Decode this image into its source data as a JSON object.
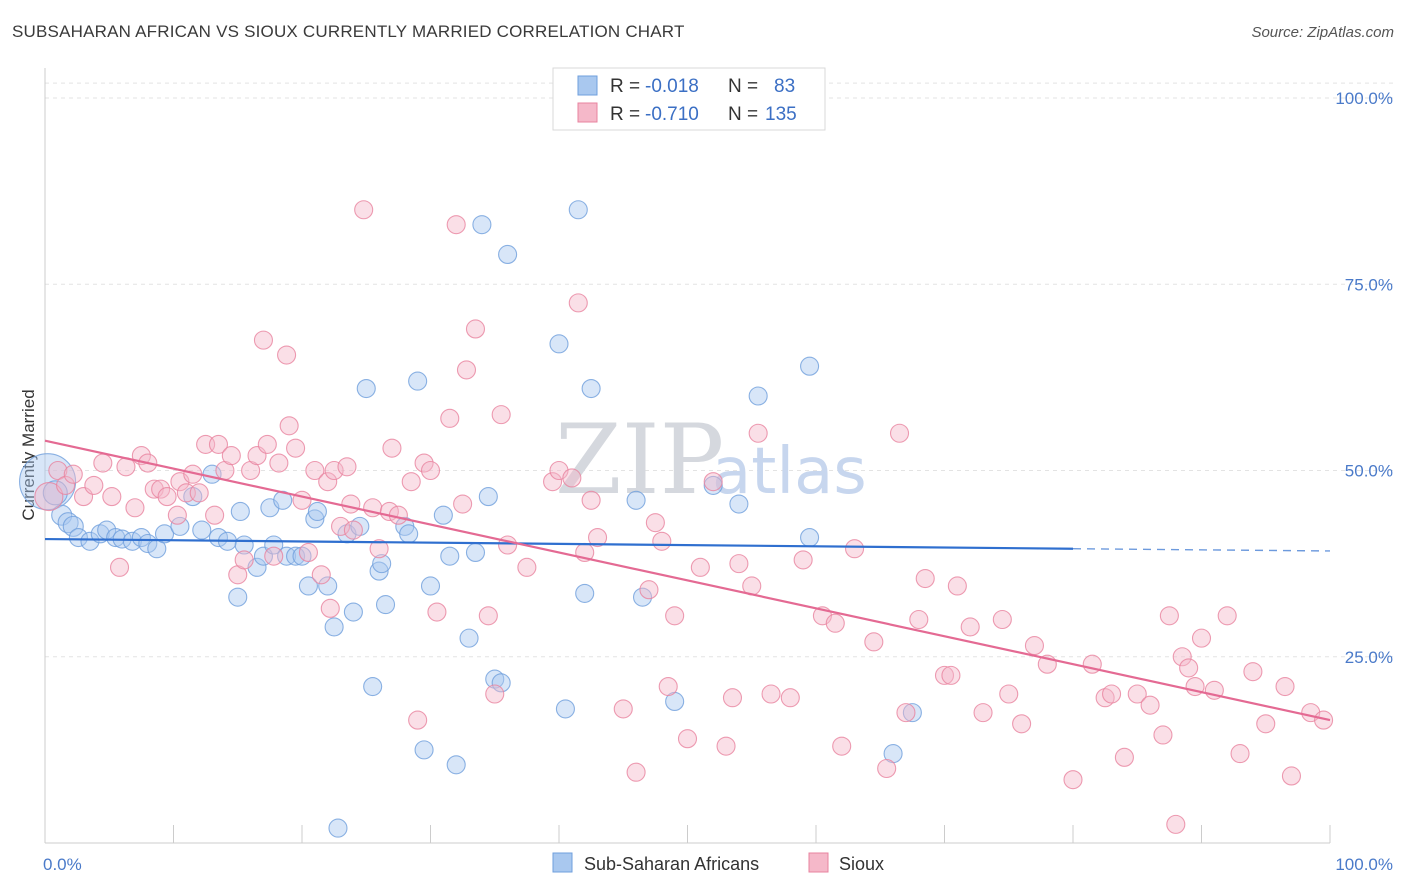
{
  "chart_data": {
    "type": "scatter",
    "title": "SUBSAHARAN AFRICAN VS SIOUX CURRENTLY MARRIED CORRELATION CHART",
    "source": "Source: ZipAtlas.com",
    "ylabel": "Currently Married",
    "xlim": [
      0,
      100
    ],
    "ylim": [
      0,
      102
    ],
    "x_tick_labels": [
      "0.0%",
      "100.0%"
    ],
    "y_ticks": [
      25,
      50,
      75,
      100
    ],
    "y_tick_labels": [
      "25.0%",
      "50.0%",
      "75.0%",
      "100.0%"
    ],
    "grid": true,
    "watermark": "ZIPatlas",
    "legend": [
      {
        "series": "Sub-Saharan Africans",
        "r_label": "R =",
        "r": "-0.018",
        "n_label": "N =",
        "n": "83"
      },
      {
        "series": "Sioux",
        "r_label": "R =",
        "r": "-0.710",
        "n_label": "N =",
        "n": "135"
      }
    ],
    "series": [
      {
        "name": "Sub-Saharan Africans",
        "color": "#6f9fdc",
        "fill": "#a9c8ef",
        "trend": {
          "x": [
            0,
            80
          ],
          "y": [
            40.8,
            39.5
          ],
          "dashed_to": [
            100,
            39.2
          ]
        },
        "points": [
          [
            0.2,
            48.5,
            28
          ],
          [
            0.8,
            47,
            12
          ],
          [
            1.3,
            44,
            10
          ],
          [
            1.8,
            43,
            10
          ],
          [
            2.2,
            42.5,
            10
          ],
          [
            2.6,
            41,
            9
          ],
          [
            3.5,
            40.5,
            9
          ],
          [
            4.3,
            41.5,
            9
          ],
          [
            4.8,
            42,
            9
          ],
          [
            5.5,
            41,
            9
          ],
          [
            6.0,
            40.8,
            9
          ],
          [
            6.8,
            40.5,
            9
          ],
          [
            7.5,
            41,
            9
          ],
          [
            8.0,
            40.2,
            9
          ],
          [
            8.7,
            39.5,
            9
          ],
          [
            9.3,
            41.5,
            9
          ],
          [
            10.5,
            42.5,
            9
          ],
          [
            11.5,
            46.5,
            9
          ],
          [
            12.2,
            42,
            9
          ],
          [
            13.0,
            49.5,
            9
          ],
          [
            13.5,
            41,
            9
          ],
          [
            14.2,
            40.5,
            9
          ],
          [
            15.0,
            33,
            9
          ],
          [
            15.2,
            44.5,
            9
          ],
          [
            15.5,
            40,
            9
          ],
          [
            16.5,
            37,
            9
          ],
          [
            17.0,
            38.5,
            9
          ],
          [
            17.5,
            45,
            9
          ],
          [
            17.8,
            40,
            9
          ],
          [
            18.5,
            46,
            9
          ],
          [
            18.8,
            38.5,
            9
          ],
          [
            19.5,
            38.5,
            9
          ],
          [
            20.0,
            38.5,
            9
          ],
          [
            20.5,
            34.5,
            9
          ],
          [
            21.0,
            43.5,
            9
          ],
          [
            21.2,
            44.5,
            9
          ],
          [
            22.0,
            34.5,
            9
          ],
          [
            22.5,
            29,
            9
          ],
          [
            22.8,
            2,
            9
          ],
          [
            23.5,
            41.5,
            9
          ],
          [
            24.0,
            31,
            9
          ],
          [
            24.5,
            42.5,
            9
          ],
          [
            25.0,
            61,
            9
          ],
          [
            25.5,
            21,
            9
          ],
          [
            26.5,
            32,
            9
          ],
          [
            26.0,
            36.5,
            9
          ],
          [
            26.2,
            37.5,
            9
          ],
          [
            28.0,
            42.5,
            9
          ],
          [
            28.3,
            41.5,
            9
          ],
          [
            29.0,
            62,
            9
          ],
          [
            29.5,
            12.5,
            9
          ],
          [
            30.0,
            34.5,
            9
          ],
          [
            31.0,
            44,
            9
          ],
          [
            31.5,
            38.5,
            9
          ],
          [
            32.0,
            10.5,
            9
          ],
          [
            33.0,
            27.5,
            9
          ],
          [
            33.5,
            39,
            9
          ],
          [
            34.0,
            83,
            9
          ],
          [
            34.5,
            46.5,
            9
          ],
          [
            35.0,
            22,
            9
          ],
          [
            35.5,
            21.5,
            9
          ],
          [
            36.0,
            79,
            9
          ],
          [
            40.5,
            18,
            9
          ],
          [
            40.0,
            67,
            9
          ],
          [
            41.5,
            85,
            9
          ],
          [
            42.0,
            33.5,
            9
          ],
          [
            42.5,
            61,
            9
          ],
          [
            46.0,
            46,
            9
          ],
          [
            46.5,
            33,
            9
          ],
          [
            49.0,
            19,
            9
          ],
          [
            52.0,
            48,
            9
          ],
          [
            54.0,
            45.5,
            9
          ],
          [
            55.5,
            60,
            9
          ],
          [
            59.5,
            41,
            9
          ],
          [
            59.5,
            64,
            9
          ],
          [
            66.0,
            12,
            9
          ],
          [
            67.5,
            17.5,
            9
          ]
        ]
      },
      {
        "name": "Sioux",
        "color": "#e8839f",
        "fill": "#f5b8c9",
        "trend": {
          "x": [
            0,
            100
          ],
          "y": [
            54,
            16.5
          ]
        },
        "points": [
          [
            0.3,
            46.5,
            14
          ],
          [
            1.0,
            50,
            9
          ],
          [
            1.6,
            48,
            9
          ],
          [
            2.2,
            49.5,
            9
          ],
          [
            3.0,
            46.5,
            9
          ],
          [
            3.8,
            48,
            9
          ],
          [
            4.5,
            51,
            9
          ],
          [
            5.2,
            46.5,
            9
          ],
          [
            5.8,
            37,
            9
          ],
          [
            6.3,
            50.5,
            9
          ],
          [
            7.0,
            45,
            9
          ],
          [
            7.5,
            52,
            9
          ],
          [
            8.0,
            51,
            9
          ],
          [
            8.5,
            47.5,
            9
          ],
          [
            9.0,
            47.5,
            9
          ],
          [
            9.5,
            46.5,
            9
          ],
          [
            10.3,
            44,
            9
          ],
          [
            10.5,
            48.5,
            9
          ],
          [
            11.0,
            47,
            9
          ],
          [
            11.5,
            49.5,
            9
          ],
          [
            12.0,
            47,
            9
          ],
          [
            12.5,
            53.5,
            9
          ],
          [
            13.2,
            44,
            9
          ],
          [
            13.5,
            53.5,
            9
          ],
          [
            14.0,
            50,
            9
          ],
          [
            14.5,
            52,
            9
          ],
          [
            15.0,
            36,
            9
          ],
          [
            15.5,
            38,
            9
          ],
          [
            16.0,
            50,
            9
          ],
          [
            16.5,
            52,
            9
          ],
          [
            17.0,
            67.5,
            9
          ],
          [
            17.3,
            53.5,
            9
          ],
          [
            17.8,
            38.5,
            9
          ],
          [
            18.2,
            51,
            9
          ],
          [
            18.8,
            65.5,
            9
          ],
          [
            19.0,
            56,
            9
          ],
          [
            19.5,
            53,
            9
          ],
          [
            20.0,
            46,
            9
          ],
          [
            20.5,
            39,
            9
          ],
          [
            21.0,
            50,
            9
          ],
          [
            21.5,
            36,
            9
          ],
          [
            22.0,
            48.5,
            9
          ],
          [
            22.2,
            31.5,
            9
          ],
          [
            22.5,
            50,
            9
          ],
          [
            23.0,
            42.5,
            9
          ],
          [
            23.5,
            50.5,
            9
          ],
          [
            24.0,
            42,
            9
          ],
          [
            23.8,
            45.5,
            9
          ],
          [
            24.8,
            85,
            9
          ],
          [
            25.5,
            45,
            9
          ],
          [
            26.0,
            39.5,
            9
          ],
          [
            26.8,
            44.5,
            9
          ],
          [
            27.0,
            53,
            9
          ],
          [
            27.5,
            44,
            9
          ],
          [
            28.5,
            48.5,
            9
          ],
          [
            29.0,
            16.5,
            9
          ],
          [
            29.5,
            51,
            9
          ],
          [
            30.0,
            50,
            9
          ],
          [
            30.5,
            31,
            9
          ],
          [
            31.5,
            57,
            9
          ],
          [
            32.0,
            83,
            9
          ],
          [
            32.5,
            45.5,
            9
          ],
          [
            32.8,
            63.5,
            9
          ],
          [
            33.5,
            69,
            9
          ],
          [
            34.5,
            30.5,
            9
          ],
          [
            35.0,
            20,
            9
          ],
          [
            35.5,
            57.5,
            9
          ],
          [
            36.0,
            40,
            9
          ],
          [
            37.5,
            37,
            9
          ],
          [
            39.5,
            48.5,
            9
          ],
          [
            40.0,
            50,
            9
          ],
          [
            41.0,
            49,
            9
          ],
          [
            41.5,
            72.5,
            9
          ],
          [
            42.0,
            39,
            9
          ],
          [
            42.5,
            46,
            9
          ],
          [
            43.0,
            41,
            9
          ],
          [
            45.0,
            18,
            9
          ],
          [
            46.0,
            9.5,
            9
          ],
          [
            47.0,
            34,
            9
          ],
          [
            47.5,
            43,
            9
          ],
          [
            48.0,
            40.5,
            9
          ],
          [
            48.5,
            21,
            9
          ],
          [
            49.0,
            30.5,
            9
          ],
          [
            50.0,
            14,
            9
          ],
          [
            51.0,
            37,
            9
          ],
          [
            52.0,
            48.5,
            9
          ],
          [
            53.0,
            13,
            9
          ],
          [
            53.5,
            19.5,
            9
          ],
          [
            54.0,
            37.5,
            9
          ],
          [
            55.0,
            34.5,
            9
          ],
          [
            55.5,
            55,
            9
          ],
          [
            56.5,
            20,
            9
          ],
          [
            58.0,
            19.5,
            9
          ],
          [
            59.0,
            38,
            9
          ],
          [
            60.5,
            30.5,
            9
          ],
          [
            61.5,
            29.5,
            9
          ],
          [
            62.0,
            13,
            9
          ],
          [
            63.0,
            39.5,
            9
          ],
          [
            64.5,
            27,
            9
          ],
          [
            65.5,
            10,
            9
          ],
          [
            66.5,
            55,
            9
          ],
          [
            67.0,
            17.5,
            9
          ],
          [
            68.0,
            30,
            9
          ],
          [
            68.5,
            35.5,
            9
          ],
          [
            70.0,
            22.5,
            9
          ],
          [
            70.5,
            22.5,
            9
          ],
          [
            71.0,
            34.5,
            9
          ],
          [
            72.0,
            29,
            9
          ],
          [
            73.0,
            17.5,
            9
          ],
          [
            74.5,
            30,
            9
          ],
          [
            75.0,
            20,
            9
          ],
          [
            76.0,
            16,
            9
          ],
          [
            77.0,
            26.5,
            9
          ],
          [
            78.0,
            24,
            9
          ],
          [
            80.0,
            8.5,
            9
          ],
          [
            81.5,
            24,
            9
          ],
          [
            82.5,
            19.5,
            9
          ],
          [
            83.0,
            20,
            9
          ],
          [
            84.0,
            11.5,
            9
          ],
          [
            85.0,
            20,
            9
          ],
          [
            86.0,
            18.5,
            9
          ],
          [
            87.0,
            14.5,
            9
          ],
          [
            87.5,
            30.5,
            9
          ],
          [
            88.0,
            2.5,
            9
          ],
          [
            88.5,
            25,
            9
          ],
          [
            89.0,
            23.5,
            9
          ],
          [
            89.5,
            21,
            9
          ],
          [
            90.0,
            27.5,
            9
          ],
          [
            91.0,
            20.5,
            9
          ],
          [
            92.0,
            30.5,
            9
          ],
          [
            93.0,
            12,
            9
          ],
          [
            94.0,
            23,
            9
          ],
          [
            95.0,
            16,
            9
          ],
          [
            96.5,
            21,
            9
          ],
          [
            97.0,
            9,
            9
          ],
          [
            98.5,
            17.5,
            9
          ],
          [
            99.5,
            16.5,
            9
          ]
        ]
      }
    ]
  }
}
